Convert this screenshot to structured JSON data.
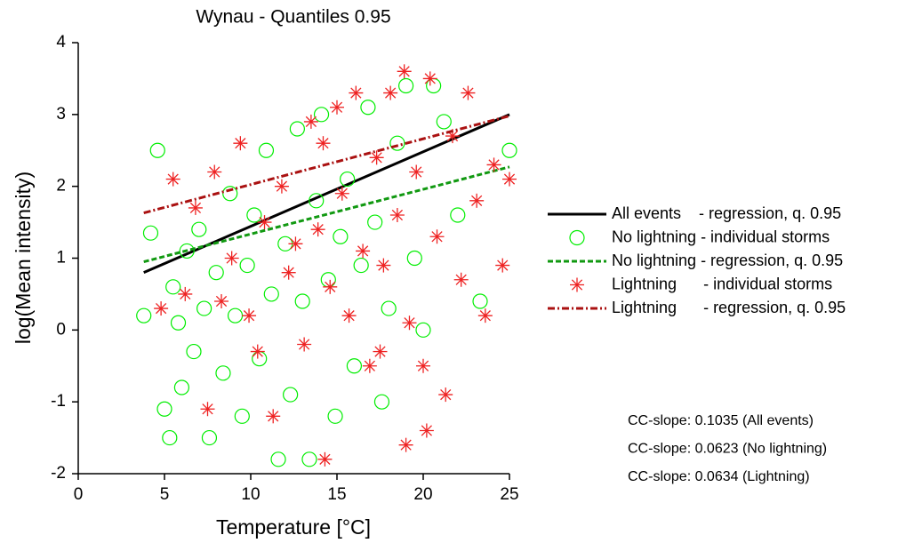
{
  "chart_data": {
    "type": "scatter",
    "title": "Wynau - Quantiles 0.95",
    "x_label": "Temperature [°C]",
    "y_label": "log(Mean intensity)",
    "xlim": [
      0,
      25
    ],
    "xticks": [
      0,
      5,
      10,
      15,
      20,
      25
    ],
    "ylim": [
      -2,
      4
    ],
    "yticks": [
      -2,
      -1,
      0,
      1,
      2,
      3,
      4
    ],
    "series": [
      {
        "name": "All events    - regression, q. 0.95",
        "kind": "line",
        "color": "#000000",
        "dash": "none",
        "width": 3,
        "x": [
          3.8,
          25
        ],
        "values": [
          0.8,
          3.0
        ]
      },
      {
        "name": "No lightning - individual storms",
        "kind": "scatter",
        "marker": "circle",
        "color": "#00ee00",
        "x": [
          3.8,
          4.2,
          4.6,
          5.0,
          5.3,
          5.5,
          5.8,
          6.0,
          6.3,
          6.7,
          7.0,
          7.3,
          7.6,
          8.0,
          8.4,
          8.8,
          9.1,
          9.5,
          9.8,
          10.2,
          10.5,
          10.9,
          11.2,
          11.6,
          12.0,
          12.3,
          12.7,
          13.0,
          13.4,
          13.8,
          14.1,
          14.5,
          14.9,
          15.2,
          15.6,
          16.0,
          16.4,
          16.8,
          17.2,
          17.6,
          18.0,
          18.5,
          19.0,
          19.5,
          20.0,
          20.6,
          21.2,
          22.0,
          23.3,
          25.0
        ],
        "values": [
          0.2,
          1.35,
          2.5,
          -1.1,
          -1.5,
          0.6,
          0.1,
          -0.8,
          1.1,
          -0.3,
          1.4,
          0.3,
          -1.5,
          0.8,
          -0.6,
          1.9,
          0.2,
          -1.2,
          0.9,
          1.6,
          -0.4,
          2.5,
          0.5,
          -1.8,
          1.2,
          -0.9,
          2.8,
          0.4,
          -1.8,
          1.8,
          3.0,
          0.7,
          -1.2,
          1.3,
          2.1,
          -0.5,
          0.9,
          3.1,
          1.5,
          -1.0,
          0.3,
          2.6,
          3.4,
          1.0,
          0.0,
          3.4,
          2.9,
          1.6,
          0.4,
          2.5
        ]
      },
      {
        "name": "No lightning - regression, q. 0.95",
        "kind": "line",
        "color": "#119911",
        "dash": "6 3",
        "width": 3,
        "x": [
          3.8,
          25
        ],
        "values": [
          0.95,
          2.27
        ]
      },
      {
        "name": "Lightning      - individual storms",
        "kind": "scatter",
        "marker": "asterisk",
        "color": "#ee2222",
        "x": [
          4.8,
          5.5,
          6.2,
          6.8,
          7.5,
          7.9,
          8.3,
          8.9,
          9.4,
          9.9,
          10.4,
          10.8,
          11.3,
          11.8,
          12.2,
          12.6,
          13.1,
          13.5,
          13.9,
          14.3,
          14.6,
          15.0,
          15.3,
          15.7,
          16.1,
          16.5,
          16.9,
          17.3,
          17.7,
          18.1,
          18.5,
          18.9,
          19.2,
          19.6,
          20.0,
          20.4,
          20.8,
          21.3,
          21.7,
          22.2,
          22.6,
          23.1,
          23.6,
          24.1,
          24.6,
          25.0,
          19.0,
          20.2,
          14.2,
          17.5
        ],
        "values": [
          0.3,
          2.1,
          0.5,
          1.7,
          -1.1,
          2.2,
          0.4,
          1.0,
          2.6,
          0.2,
          -0.3,
          1.5,
          -1.2,
          2.0,
          0.8,
          1.2,
          -0.2,
          2.9,
          1.4,
          -1.8,
          0.6,
          3.1,
          1.9,
          0.2,
          3.3,
          1.1,
          -0.5,
          2.4,
          0.9,
          3.3,
          1.6,
          3.6,
          0.1,
          2.2,
          -0.5,
          3.5,
          1.3,
          -0.9,
          2.7,
          0.7,
          3.3,
          1.8,
          0.2,
          2.3,
          0.9,
          2.1,
          -1.6,
          -1.4,
          2.6,
          -0.3
        ]
      },
      {
        "name": "Lightning      - regression, q. 0.95",
        "kind": "line",
        "color": "#aa1111",
        "dash": "8 3 2 3",
        "width": 3,
        "x": [
          3.8,
          25
        ],
        "values": [
          1.63,
          2.98
        ]
      }
    ],
    "annotations": [
      "CC-slope: 0.1035 (All events)",
      "CC-slope: 0.0623 (No lightning)",
      "CC-slope: 0.0634 (Lightning)"
    ]
  }
}
